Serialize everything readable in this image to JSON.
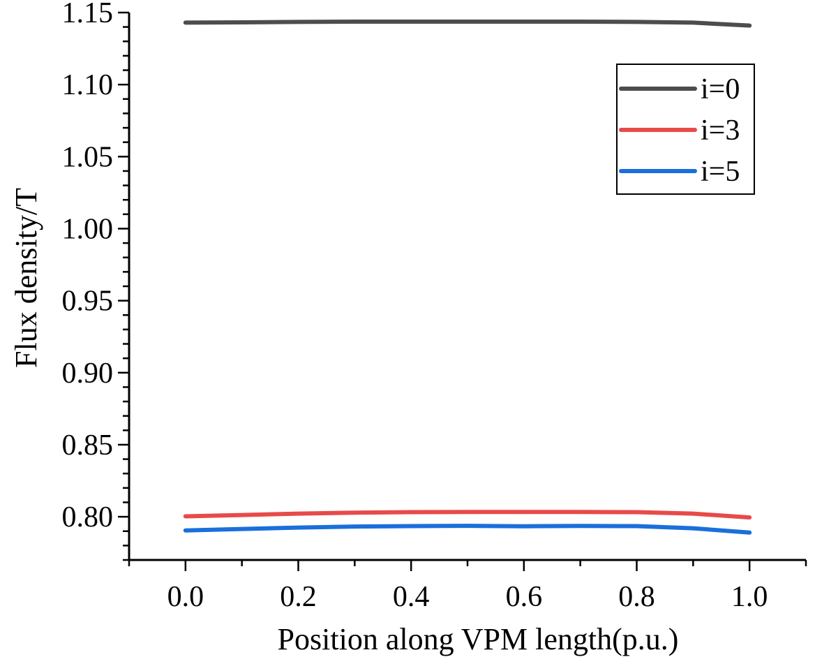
{
  "chart_data": {
    "type": "line",
    "title": "",
    "xlabel": "Position along VPM length(p.u.)",
    "ylabel": "Flux density/T",
    "xlim": [
      -0.1,
      1.1
    ],
    "ylim": [
      0.77,
      1.15
    ],
    "xticks": [
      "0.0",
      "0.2",
      "0.4",
      "0.6",
      "0.8",
      "1.0"
    ],
    "xtick_values": [
      0.0,
      0.2,
      0.4,
      0.6,
      0.8,
      1.0
    ],
    "yticks": [
      "0.80",
      "0.85",
      "0.90",
      "0.95",
      "1.00",
      "1.05",
      "1.10",
      "1.15"
    ],
    "ytick_values": [
      0.8,
      0.85,
      0.9,
      0.95,
      1.0,
      1.05,
      1.1,
      1.15
    ],
    "grid": false,
    "legend_position": "top-right",
    "x": [
      0.0,
      0.1,
      0.2,
      0.3,
      0.4,
      0.5,
      0.6,
      0.7,
      0.8,
      0.9,
      1.0
    ],
    "series": [
      {
        "name": "i=0",
        "color": "#4d4d4d",
        "values": [
          1.143,
          1.1432,
          1.1435,
          1.1437,
          1.1437,
          1.1437,
          1.1437,
          1.1437,
          1.1435,
          1.143,
          1.141
        ]
      },
      {
        "name": "i=3",
        "color": "#e84a4a",
        "values": [
          0.8003,
          0.8012,
          0.8022,
          0.8028,
          0.8032,
          0.8033,
          0.8033,
          0.8033,
          0.8032,
          0.8022,
          0.7995
        ]
      },
      {
        "name": "i=5",
        "color": "#1a6fdb",
        "values": [
          0.7905,
          0.7915,
          0.7925,
          0.7932,
          0.7935,
          0.7937,
          0.7934,
          0.7936,
          0.7935,
          0.792,
          0.789
        ]
      }
    ]
  }
}
